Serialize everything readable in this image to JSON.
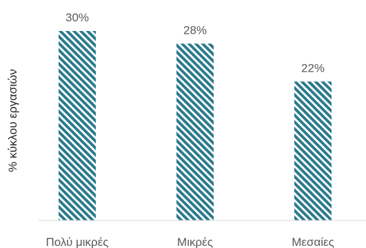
{
  "chart_data": {
    "type": "bar",
    "categories": [
      "Πολύ μικρές",
      "Μικρές",
      "Μεσαίες"
    ],
    "values": [
      30,
      28,
      22
    ],
    "value_labels": [
      "30%",
      "28%",
      "22%"
    ],
    "title": "",
    "xlabel": "",
    "ylabel": "% κύκλου εργασιών",
    "ylim": [
      0,
      30
    ],
    "grid": false,
    "legend": "none",
    "bar_pattern": "diagonal-stripes"
  },
  "colors": {
    "bar_stripe": "#2a7a8c",
    "bar_background": "#ffffff",
    "axis_line": "#d9d9d9",
    "label_text": "#595959",
    "axis_title_text": "#262626"
  }
}
